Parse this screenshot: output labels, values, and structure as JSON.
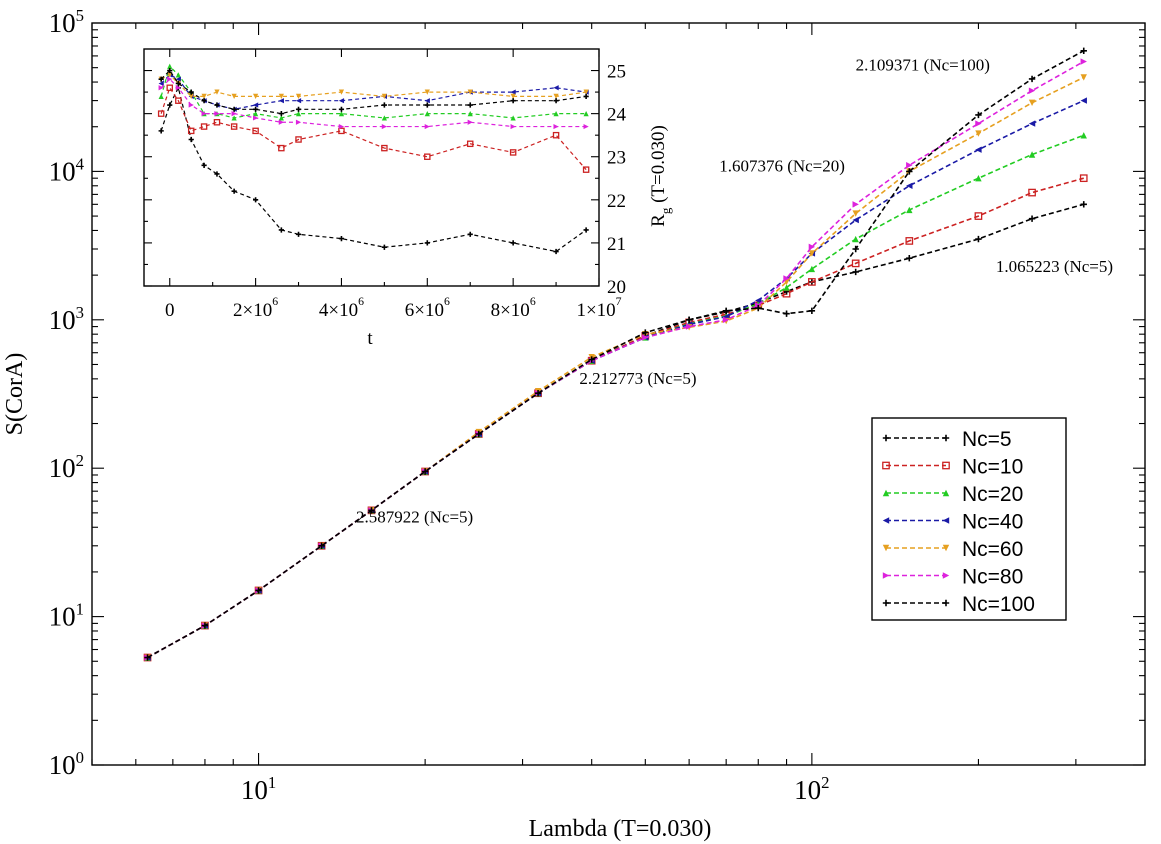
{
  "chart_data": [
    {
      "id": "main",
      "type": "line",
      "xscale": "log",
      "yscale": "log",
      "xlim": [
        5,
        400
      ],
      "ylim": [
        1,
        100000
      ],
      "xlabel": "Lambda (T=0.030)",
      "ylabel": "S(CorA)",
      "xticks": [
        {
          "value": 10,
          "mantissa": "10",
          "exp": "1"
        },
        {
          "value": 100,
          "mantissa": "10",
          "exp": "2"
        }
      ],
      "yticks": [
        {
          "value": 1,
          "mantissa": "10",
          "exp": "0"
        },
        {
          "value": 10,
          "mantissa": "10",
          "exp": "1"
        },
        {
          "value": 100,
          "mantissa": "10",
          "exp": "2"
        },
        {
          "value": 1000,
          "mantissa": "10",
          "exp": "3"
        },
        {
          "value": 10000,
          "mantissa": "10",
          "exp": "4"
        },
        {
          "value": 100000,
          "mantissa": "10",
          "exp": "5"
        }
      ],
      "x": [
        6.3,
        8,
        10,
        13,
        16,
        20,
        25,
        32,
        40,
        50,
        60,
        70,
        80,
        90,
        100,
        120,
        150,
        200,
        250,
        310
      ],
      "series": [
        {
          "name": "Nc=5",
          "color": "#000000",
          "marker": "plus",
          "values": [
            5.3,
            8.7,
            15,
            30,
            52,
            95,
            170,
            320,
            530,
            780,
            1000,
            1130,
            1300,
            1550,
            1800,
            2100,
            2600,
            3500,
            4800,
            6000
          ]
        },
        {
          "name": "Nc=10",
          "color": "#cc2222",
          "marker": "square",
          "values": [
            5.3,
            8.7,
            15,
            30,
            52,
            95,
            170,
            320,
            530,
            780,
            960,
            1090,
            1250,
            1500,
            1800,
            2400,
            3400,
            5000,
            7200,
            9000
          ]
        },
        {
          "name": "Nc=20",
          "color": "#22cc22",
          "marker": "triangle-up",
          "values": [
            5.3,
            8.7,
            15,
            30,
            52,
            95,
            170,
            320,
            530,
            760,
            940,
            1060,
            1280,
            1650,
            2200,
            3500,
            5500,
            9000,
            13000,
            17500
          ]
        },
        {
          "name": "Nc=40",
          "color": "#1a1aa6",
          "marker": "triangle-left",
          "values": [
            5.3,
            8.7,
            15,
            30,
            52,
            95,
            170,
            320,
            530,
            760,
            930,
            1050,
            1350,
            1900,
            2800,
            4700,
            8000,
            14000,
            21000,
            30000
          ]
        },
        {
          "name": "Nc=60",
          "color": "#e6a020",
          "marker": "triangle-down",
          "values": [
            5.3,
            8.7,
            15,
            30,
            52,
            95,
            175,
            330,
            560,
            800,
            890,
            980,
            1200,
            1800,
            2800,
            5200,
            10000,
            18000,
            29000,
            43000
          ]
        },
        {
          "name": "Nc=80",
          "color": "#dd22dd",
          "marker": "triangle-right",
          "values": [
            5.3,
            8.7,
            15,
            30,
            52,
            95,
            170,
            320,
            530,
            760,
            900,
            1000,
            1250,
            1900,
            3100,
            6000,
            11000,
            21000,
            35000,
            55000
          ]
        },
        {
          "name": "Nc=100",
          "color": "#000000",
          "marker": "plus",
          "values": [
            5.3,
            8.7,
            15,
            30,
            52,
            95,
            170,
            320,
            540,
            820,
            1000,
            1150,
            1200,
            1100,
            1150,
            3000,
            10000,
            24000,
            42000,
            65000
          ]
        }
      ],
      "annotations": [
        {
          "text": "2.109371 (Nc=100)",
          "at": [
            120,
            48000
          ]
        },
        {
          "text": "1.607376 (Nc=20)",
          "at": [
            68,
            10000
          ]
        },
        {
          "text": "1.065223 (Nc=5)",
          "at": [
            215,
            2100
          ]
        },
        {
          "text": "2.212773 (Nc=5)",
          "at": [
            38,
            370
          ]
        },
        {
          "text": "2.587922 (Nc=5)",
          "at": [
            15,
            43
          ]
        }
      ]
    },
    {
      "id": "inset",
      "type": "line",
      "xlim": [
        -600000,
        10000000
      ],
      "ylim": [
        20,
        25.5
      ],
      "xlabel": "t",
      "ylabel": "R_g (T=0.030)",
      "ylabel_main": "R",
      "ylabel_sub": "g",
      "ylabel_rest": " (T=0.030)",
      "xticks": [
        {
          "value": 0,
          "mantissa": "0",
          "exp": ""
        },
        {
          "value": 2000000,
          "mantissa": "2×10",
          "exp": "6"
        },
        {
          "value": 4000000,
          "mantissa": "4×10",
          "exp": "6"
        },
        {
          "value": 6000000,
          "mantissa": "6×10",
          "exp": "6"
        },
        {
          "value": 8000000,
          "mantissa": "8×10",
          "exp": "6"
        },
        {
          "value": 10000000,
          "mantissa": "1×10",
          "exp": "7"
        }
      ],
      "yticks": [
        20,
        21,
        22,
        23,
        24,
        25
      ],
      "x": [
        -200000,
        0,
        200000,
        500000,
        800000,
        1100000,
        1500000,
        2000000,
        2600000,
        3000000,
        4000000,
        5000000,
        6000000,
        7000000,
        8000000,
        9000000,
        9700000
      ],
      "series": [
        {
          "name": "Nc=5",
          "color": "#000000",
          "marker": "plus",
          "values": [
            23.6,
            24.2,
            24.6,
            23.4,
            22.8,
            22.6,
            22.2,
            22.0,
            21.3,
            21.2,
            21.1,
            20.9,
            21.0,
            21.2,
            21.0,
            20.8,
            21.3
          ]
        },
        {
          "name": "Nc=10",
          "color": "#cc2222",
          "marker": "square",
          "values": [
            24.0,
            24.6,
            24.3,
            23.6,
            23.7,
            23.8,
            23.7,
            23.6,
            23.2,
            23.4,
            23.6,
            23.2,
            23.0,
            23.3,
            23.1,
            23.5,
            22.7
          ]
        },
        {
          "name": "Nc=20",
          "color": "#22cc22",
          "marker": "triangle-up",
          "values": [
            24.4,
            25.1,
            24.9,
            24.5,
            24.0,
            24.0,
            23.9,
            24.0,
            23.9,
            24.0,
            24.0,
            23.9,
            24.0,
            24.0,
            23.9,
            24.0,
            24.0
          ]
        },
        {
          "name": "Nc=40",
          "color": "#1a1aa6",
          "marker": "triangle-left",
          "values": [
            24.7,
            24.9,
            24.8,
            24.4,
            24.3,
            24.2,
            24.1,
            24.2,
            24.3,
            24.3,
            24.3,
            24.4,
            24.3,
            24.5,
            24.5,
            24.6,
            24.5
          ]
        },
        {
          "name": "Nc=60",
          "color": "#e6a020",
          "marker": "triangle-down",
          "values": [
            24.8,
            24.9,
            24.7,
            24.4,
            24.4,
            24.5,
            24.4,
            24.4,
            24.4,
            24.4,
            24.5,
            24.4,
            24.5,
            24.5,
            24.4,
            24.4,
            24.5
          ]
        },
        {
          "name": "Nc=80",
          "color": "#dd22dd",
          "marker": "triangle-right",
          "values": [
            24.6,
            24.8,
            24.6,
            24.2,
            24.0,
            24.0,
            24.0,
            23.9,
            23.8,
            23.8,
            23.7,
            23.7,
            23.7,
            23.8,
            23.7,
            23.7,
            23.7
          ]
        },
        {
          "name": "Nc=100",
          "color": "#000000",
          "marker": "plus",
          "values": [
            24.8,
            25.0,
            24.7,
            24.5,
            24.3,
            24.2,
            24.1,
            24.1,
            24.0,
            24.1,
            24.1,
            24.2,
            24.2,
            24.2,
            24.3,
            24.3,
            24.4
          ]
        }
      ]
    }
  ],
  "legend": {
    "position": "right-middle",
    "entries": [
      "Nc=5",
      "Nc=10",
      "Nc=20",
      "Nc=40",
      "Nc=60",
      "Nc=80",
      "Nc=100"
    ]
  }
}
